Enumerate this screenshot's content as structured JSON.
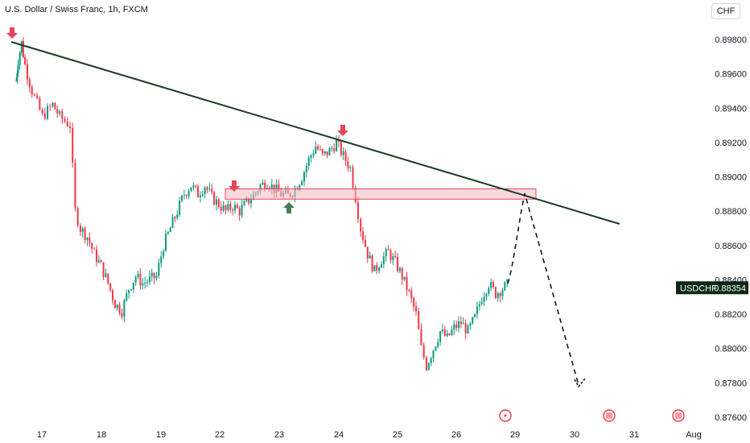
{
  "header": {
    "title": "U.S. Dollar / Swiss Franc, 1h, FXCM",
    "currency": "CHF"
  },
  "price_label": {
    "symbol": "USDCHF",
    "value": "0.88354"
  },
  "colors": {
    "up": "#089981",
    "down": "#f23645",
    "trendline": "#1b3d22",
    "zone_fill": "#f6b8bf",
    "zone_border": "#e8455a",
    "arrow_down": "#e8455a",
    "arrow_up": "#4a7a52",
    "label_bg": "#0a2a12"
  },
  "chart_data": {
    "type": "candlestick",
    "title": "U.S. Dollar / Swiss Franc, 1h, FXCM",
    "currency": "CHF",
    "y_ticks": [
      "0.89800",
      "0.89600",
      "0.89400",
      "0.89200",
      "0.89000",
      "0.88800",
      "0.88600",
      "0.88400",
      "0.88200",
      "0.88000",
      "0.87800",
      "0.87600"
    ],
    "ylim": [
      0.8758,
      0.9002
    ],
    "x_ticks": [
      "17",
      "18",
      "19",
      "22",
      "23",
      "24",
      "25",
      "26",
      "29",
      "30",
      "31",
      "Aug"
    ],
    "grid": false,
    "approx_path": [
      [
        0.8955,
        0.8956
      ],
      [
        1.0,
        0.8968
      ],
      [
        1.2,
        0.8978
      ],
      [
        1.4,
        0.8965
      ],
      [
        1.8,
        0.895
      ],
      [
        2.4,
        0.8935
      ],
      [
        3.0,
        0.8942
      ],
      [
        3.4,
        0.8935
      ],
      [
        4.0,
        0.893
      ],
      [
        4.3,
        0.888
      ],
      [
        4.6,
        0.887
      ],
      [
        5.0,
        0.8865
      ],
      [
        5.4,
        0.8855
      ],
      [
        5.8,
        0.8848
      ],
      [
        6.2,
        0.8838
      ],
      [
        6.6,
        0.8826
      ],
      [
        7.0,
        0.8822
      ],
      [
        7.4,
        0.8835
      ],
      [
        7.8,
        0.8842
      ],
      [
        8.2,
        0.8838
      ],
      [
        8.6,
        0.884
      ],
      [
        9.0,
        0.8842
      ],
      [
        9.4,
        0.886
      ],
      [
        9.8,
        0.887
      ],
      [
        10.2,
        0.888
      ],
      [
        10.6,
        0.889
      ],
      [
        11.0,
        0.8895
      ],
      [
        11.4,
        0.889
      ],
      [
        11.8,
        0.8895
      ],
      [
        12.2,
        0.8888
      ],
      [
        12.6,
        0.8884
      ],
      [
        13.0,
        0.888
      ],
      [
        13.4,
        0.8883
      ],
      [
        13.8,
        0.888
      ],
      [
        14.2,
        0.8885
      ],
      [
        14.6,
        0.8889
      ],
      [
        15.0,
        0.8895
      ],
      [
        15.4,
        0.8897
      ],
      [
        15.8,
        0.8893
      ],
      [
        16.2,
        0.889
      ],
      [
        16.6,
        0.8889
      ],
      [
        17.0,
        0.8893
      ],
      [
        17.4,
        0.89
      ],
      [
        17.8,
        0.891
      ],
      [
        18.2,
        0.8918
      ],
      [
        18.6,
        0.8912
      ],
      [
        19.0,
        0.8915
      ],
      [
        19.4,
        0.892
      ],
      [
        19.8,
        0.8912
      ],
      [
        20.2,
        0.8905
      ],
      [
        20.5,
        0.8888
      ],
      [
        20.8,
        0.887
      ],
      [
        21.2,
        0.8855
      ],
      [
        21.6,
        0.8845
      ],
      [
        22.0,
        0.8852
      ],
      [
        22.4,
        0.8856
      ],
      [
        22.8,
        0.885
      ],
      [
        23.2,
        0.8842
      ],
      [
        23.6,
        0.8832
      ],
      [
        24.0,
        0.882
      ],
      [
        24.3,
        0.88
      ],
      [
        24.6,
        0.879
      ],
      [
        25.0,
        0.88
      ],
      [
        25.4,
        0.881
      ],
      [
        25.8,
        0.8806
      ],
      [
        26.2,
        0.8812
      ],
      [
        26.6,
        0.8815
      ],
      [
        27.0,
        0.881
      ],
      [
        27.4,
        0.8818
      ],
      [
        27.8,
        0.883
      ],
      [
        28.2,
        0.8838
      ],
      [
        28.6,
        0.8832
      ],
      [
        29.0,
        0.8835
      ],
      [
        29.4,
        0.8838
      ]
    ],
    "annotations": {
      "trendline": [
        [
          0.0,
          0.898
        ],
        [
          1.0,
          0.8876
        ]
      ],
      "resistance_zone": [
        0.8887,
        0.8893
      ],
      "last_price": 0.88354,
      "projection_target": 0.889,
      "projection_end": 0.878
    }
  }
}
